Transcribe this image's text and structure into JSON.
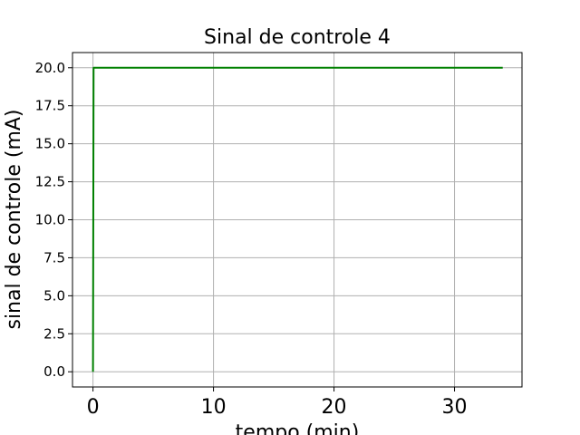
{
  "chart_data": {
    "type": "line",
    "title": "Sinal de controle 4",
    "xlabel": "tempo (min)",
    "ylabel": "sinal de controle (mA)",
    "xlim": [
      -1.7,
      35.6
    ],
    "ylim": [
      -1.0,
      21.0
    ],
    "x_ticks": [
      0,
      10,
      20,
      30
    ],
    "x_tick_labels": [
      "0",
      "10",
      "20",
      "30"
    ],
    "y_ticks": [
      0,
      2.5,
      5,
      7.5,
      10,
      12.5,
      15,
      17.5,
      20
    ],
    "y_tick_labels": [
      "0.0",
      "2.5",
      "5.0",
      "7.5",
      "10.0",
      "12.5",
      "15.0",
      "17.5",
      "20.0"
    ],
    "grid": true,
    "series": [
      {
        "color": "#008000",
        "x": [
          0,
          0.05,
          0.1,
          34
        ],
        "y": [
          0,
          20,
          20,
          20
        ]
      }
    ]
  }
}
